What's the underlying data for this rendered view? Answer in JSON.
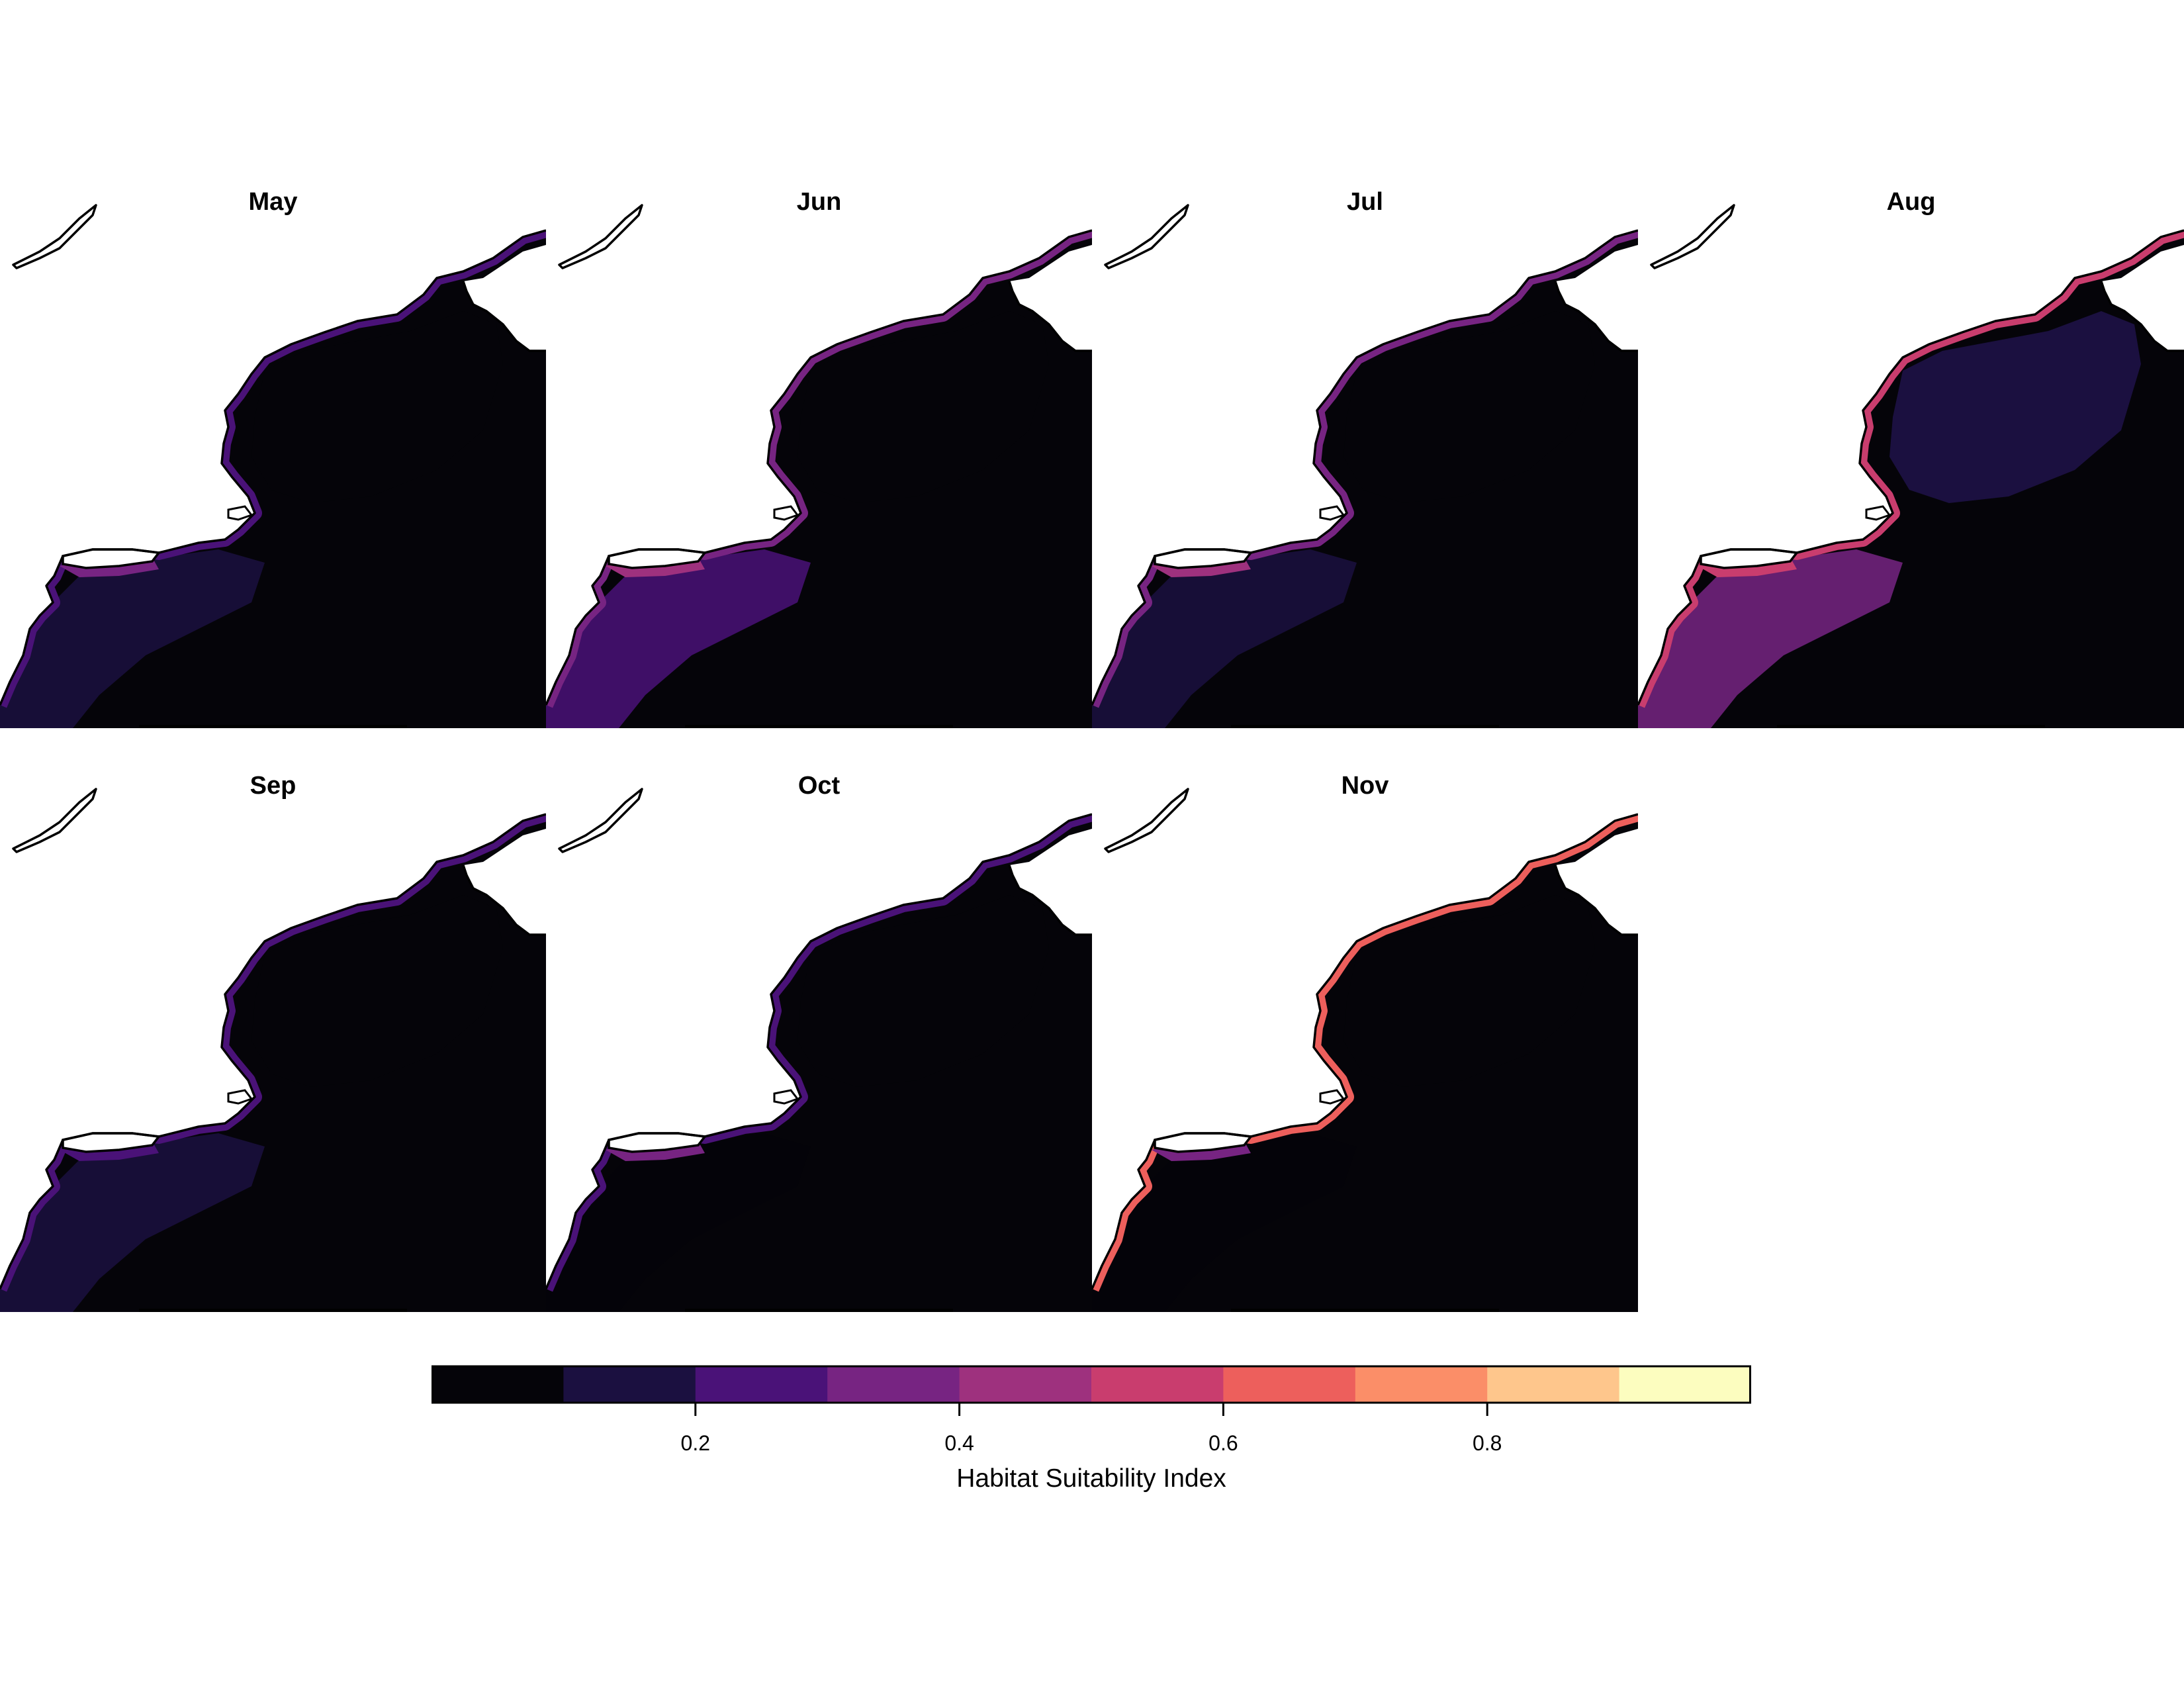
{
  "figure": {
    "legend": {
      "title": "Habitat Suitability Index",
      "ticks": [
        "0.2",
        "0.4",
        "0.6",
        "0.8"
      ],
      "tick_values": [
        0.2,
        0.4,
        0.6,
        0.8
      ],
      "range": [
        0,
        1
      ],
      "bins": [
        {
          "from": 0.0,
          "to": 0.1,
          "color": "#050409"
        },
        {
          "from": 0.1,
          "to": 0.2,
          "color": "#1b1040"
        },
        {
          "from": 0.2,
          "to": 0.3,
          "color": "#4a1278"
        },
        {
          "from": 0.3,
          "to": 0.4,
          "color": "#772482"
        },
        {
          "from": 0.4,
          "to": 0.5,
          "color": "#9e317e"
        },
        {
          "from": 0.5,
          "to": 0.6,
          "color": "#c93d6e"
        },
        {
          "from": 0.6,
          "to": 0.7,
          "color": "#ed5f5c"
        },
        {
          "from": 0.7,
          "to": 0.8,
          "color": "#fb8e68"
        },
        {
          "from": 0.8,
          "to": 0.9,
          "color": "#fec68c"
        },
        {
          "from": 0.9,
          "to": 1.0,
          "color": "#fcfdbf"
        }
      ]
    },
    "panels": [
      {
        "title": "May",
        "offshore_level": 0.05,
        "coastal_level": 0.2,
        "gulf_level": 0.03,
        "shelf_level": 0.12,
        "sound_level": 0.35
      },
      {
        "title": "Jun",
        "offshore_level": 0.05,
        "coastal_level": 0.35,
        "gulf_level": 0.03,
        "shelf_level": 0.25,
        "sound_level": 0.45
      },
      {
        "title": "Jul",
        "offshore_level": 0.05,
        "coastal_level": 0.35,
        "gulf_level": 0.04,
        "shelf_level": 0.18,
        "sound_level": 0.4
      },
      {
        "title": "Aug",
        "offshore_level": 0.05,
        "coastal_level": 0.55,
        "gulf_level": 0.15,
        "shelf_level": 0.35,
        "sound_level": 0.55
      },
      {
        "title": "Sep",
        "offshore_level": 0.05,
        "coastal_level": 0.25,
        "gulf_level": 0.04,
        "shelf_level": 0.12,
        "sound_level": 0.2
      },
      {
        "title": "Oct",
        "offshore_level": 0.04,
        "coastal_level": 0.25,
        "gulf_level": 0.03,
        "shelf_level": 0.07,
        "sound_level": 0.3
      },
      {
        "title": "Nov",
        "offshore_level": 0.04,
        "coastal_level": 0.65,
        "gulf_level": 0.03,
        "shelf_level": 0.08,
        "sound_level": 0.35
      }
    ]
  }
}
